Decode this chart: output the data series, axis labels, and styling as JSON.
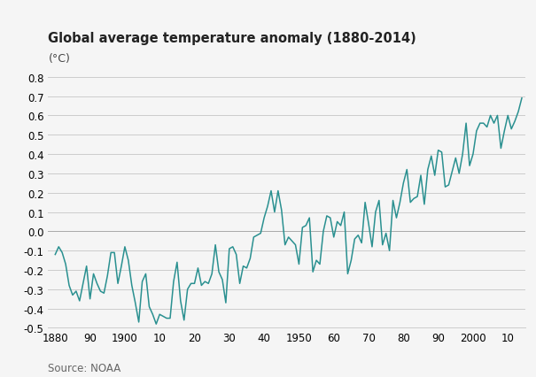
{
  "title": "Global average temperature anomaly (1880-2014)",
  "ylabel": "(°C)",
  "source": "Source: NOAA",
  "line_color": "#2a9090",
  "background_color": "#f5f5f5",
  "grid_color": "#cccccc",
  "ylim": [
    -0.5,
    0.85
  ],
  "yticks": [
    -0.5,
    -0.4,
    -0.3,
    -0.2,
    -0.1,
    0.0,
    0.1,
    0.2,
    0.3,
    0.4,
    0.5,
    0.6,
    0.7,
    0.8
  ],
  "xticks": [
    1880,
    1890,
    1900,
    1910,
    1920,
    1930,
    1940,
    1950,
    1960,
    1970,
    1980,
    1990,
    2000,
    2010
  ],
  "xticklabels": [
    "1880",
    "90",
    "1900",
    "10",
    "20",
    "30",
    "40",
    "1950",
    "60",
    "70",
    "80",
    "90",
    "2000",
    "10"
  ],
  "years": [
    1880,
    1881,
    1882,
    1883,
    1884,
    1885,
    1886,
    1887,
    1888,
    1889,
    1890,
    1891,
    1892,
    1893,
    1894,
    1895,
    1896,
    1897,
    1898,
    1899,
    1900,
    1901,
    1902,
    1903,
    1904,
    1905,
    1906,
    1907,
    1908,
    1909,
    1910,
    1911,
    1912,
    1913,
    1914,
    1915,
    1916,
    1917,
    1918,
    1919,
    1920,
    1921,
    1922,
    1923,
    1924,
    1925,
    1926,
    1927,
    1928,
    1929,
    1930,
    1931,
    1932,
    1933,
    1934,
    1935,
    1936,
    1937,
    1938,
    1939,
    1940,
    1941,
    1942,
    1943,
    1944,
    1945,
    1946,
    1947,
    1948,
    1949,
    1950,
    1951,
    1952,
    1953,
    1954,
    1955,
    1956,
    1957,
    1958,
    1959,
    1960,
    1961,
    1962,
    1963,
    1964,
    1965,
    1966,
    1967,
    1968,
    1969,
    1970,
    1971,
    1972,
    1973,
    1974,
    1975,
    1976,
    1977,
    1978,
    1979,
    1980,
    1981,
    1982,
    1983,
    1984,
    1985,
    1986,
    1987,
    1988,
    1989,
    1990,
    1991,
    1992,
    1993,
    1994,
    1995,
    1996,
    1997,
    1998,
    1999,
    2000,
    2001,
    2002,
    2003,
    2004,
    2005,
    2006,
    2007,
    2008,
    2009,
    2010,
    2011,
    2012,
    2013,
    2014
  ],
  "anomalies": [
    -0.12,
    -0.08,
    -0.11,
    -0.17,
    -0.28,
    -0.33,
    -0.31,
    -0.36,
    -0.27,
    -0.18,
    -0.35,
    -0.22,
    -0.27,
    -0.31,
    -0.32,
    -0.23,
    -0.11,
    -0.11,
    -0.27,
    -0.18,
    -0.08,
    -0.15,
    -0.28,
    -0.37,
    -0.47,
    -0.26,
    -0.22,
    -0.39,
    -0.43,
    -0.48,
    -0.43,
    -0.44,
    -0.45,
    -0.45,
    -0.26,
    -0.16,
    -0.36,
    -0.46,
    -0.3,
    -0.27,
    -0.27,
    -0.19,
    -0.28,
    -0.26,
    -0.27,
    -0.22,
    -0.07,
    -0.21,
    -0.25,
    -0.37,
    -0.09,
    -0.08,
    -0.12,
    -0.27,
    -0.18,
    -0.19,
    -0.14,
    -0.03,
    -0.02,
    -0.01,
    0.07,
    0.13,
    0.21,
    0.1,
    0.21,
    0.11,
    -0.07,
    -0.03,
    -0.05,
    -0.07,
    -0.17,
    0.02,
    0.03,
    0.07,
    -0.21,
    -0.15,
    -0.17,
    0.0,
    0.08,
    0.07,
    -0.03,
    0.05,
    0.03,
    0.1,
    -0.22,
    -0.15,
    -0.04,
    -0.02,
    -0.06,
    0.15,
    0.04,
    -0.08,
    0.1,
    0.16,
    -0.07,
    -0.01,
    -0.1,
    0.16,
    0.07,
    0.15,
    0.25,
    0.32,
    0.15,
    0.17,
    0.18,
    0.29,
    0.14,
    0.32,
    0.39,
    0.29,
    0.42,
    0.41,
    0.23,
    0.24,
    0.31,
    0.38,
    0.3,
    0.4,
    0.56,
    0.34,
    0.4,
    0.52,
    0.56,
    0.56,
    0.54,
    0.6,
    0.56,
    0.6,
    0.43,
    0.52,
    0.6,
    0.53,
    0.57,
    0.62,
    0.69
  ]
}
